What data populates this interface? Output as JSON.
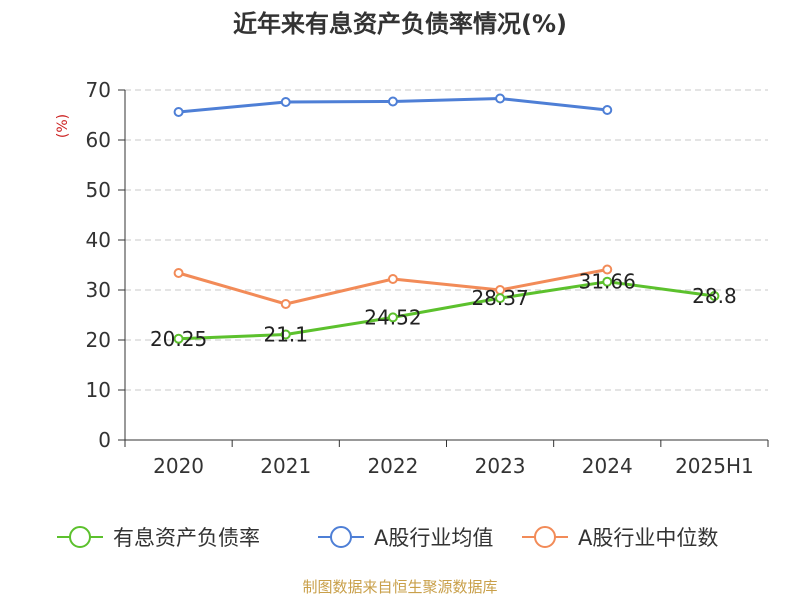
{
  "chart_data": {
    "type": "line",
    "title": "近年来有息资产负债率情况(%)",
    "ylabel": "(%)",
    "xlabel": "",
    "categories": [
      "2020",
      "2021",
      "2022",
      "2023",
      "2024",
      "2025H1"
    ],
    "ylim": [
      0,
      70
    ],
    "yticks": [
      0,
      10,
      20,
      30,
      40,
      50,
      60,
      70
    ],
    "grid": true,
    "legend_position": "bottom",
    "series": [
      {
        "name": "有息资产负债率",
        "color": "#5cc12d",
        "values": [
          20.25,
          21.1,
          24.52,
          28.37,
          31.66,
          28.8
        ],
        "data_labels": [
          "20.25",
          "21.1",
          "24.52",
          "28.37",
          "31.66",
          "28.8"
        ]
      },
      {
        "name": "A股行业均值",
        "color": "#4e7fd6",
        "values": [
          65.6,
          67.6,
          67.7,
          68.3,
          66.0,
          null
        ]
      },
      {
        "name": "A股行业中位数",
        "color": "#f28b58",
        "values": [
          33.4,
          27.2,
          32.2,
          30.0,
          34.1,
          null
        ]
      }
    ]
  },
  "source": {
    "text": "制图数据来自恒生聚源数据库",
    "color": "#c9a04a"
  },
  "unit_color": "#cc2222"
}
